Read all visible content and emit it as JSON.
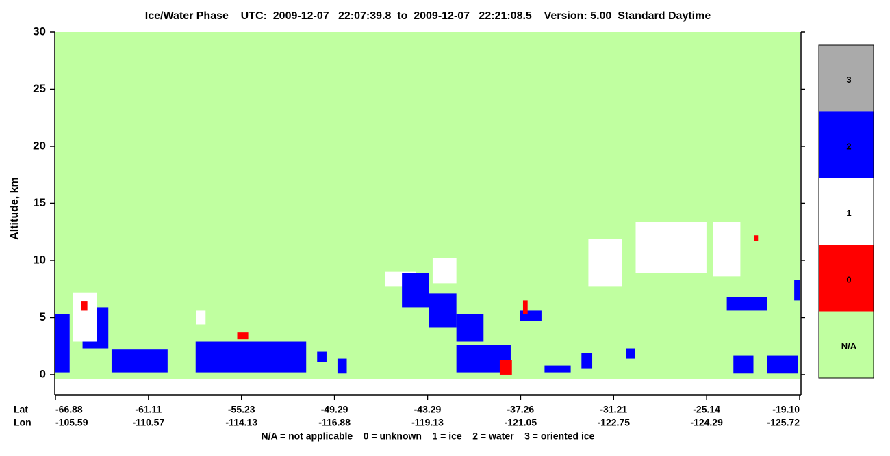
{
  "chart_data": {
    "type": "curtain",
    "title": "Ice/Water Phase    UTC:  2009-12-07   22:07:39.8  to  2009-12-07   22:21:08.5    Version: 5.00  Standard Daytime",
    "ylabel": "Altitude, km",
    "ylim": [
      -1.8,
      30
    ],
    "yticks": [
      0,
      5,
      10,
      15,
      20,
      25,
      30
    ],
    "altitude_range": [
      -0.4,
      30
    ],
    "background_color": "#c0ffa0",
    "x_axes": [
      {
        "name": "Lat",
        "ticks": [
          -66.88,
          -61.11,
          -55.23,
          -49.29,
          -43.29,
          -37.26,
          -31.21,
          -25.14,
          {
            "value": -19.1,
            "label": "-19.10"
          }
        ]
      },
      {
        "name": "Lon",
        "ticks": [
          -105.59,
          -110.57,
          -114.13,
          -116.88,
          -119.13,
          -121.05,
          -122.75,
          -124.29,
          -125.72
        ]
      }
    ],
    "colorbar": [
      {
        "label": "3",
        "color": "#aaaaaa"
      },
      {
        "label": "2",
        "color": "#0000ff"
      },
      {
        "label": "1",
        "color": "#ffffff"
      },
      {
        "label": "0",
        "color": "#ff0000"
      },
      {
        "label": "N/A",
        "color": "#c0ffa0"
      }
    ],
    "legend": "N/A = not applicable    0 = unknown    1 = ice    2 = water    3 = oriented ice",
    "features": [
      {
        "phase": "1",
        "lat": [
          -29.77,
          -25.15
        ],
        "alt": [
          8.9,
          13.4
        ]
      },
      {
        "phase": "1",
        "lat": [
          -32.85,
          -30.65
        ],
        "alt": [
          7.7,
          11.9
        ]
      },
      {
        "phase": "1",
        "lat": [
          -24.72,
          -22.95
        ],
        "alt": [
          8.6,
          13.4
        ]
      },
      {
        "phase": "1",
        "lat": [
          -42.96,
          -41.42
        ],
        "alt": [
          8.0,
          10.2
        ]
      },
      {
        "phase": "1",
        "lat": [
          -46.04,
          -44.06
        ],
        "alt": [
          7.7,
          9.0
        ]
      },
      {
        "phase": "2",
        "lat": [
          -63.4,
          -59.9
        ],
        "alt": [
          0.2,
          2.2
        ]
      },
      {
        "phase": "2",
        "lat": [
          -58.13,
          -51.1
        ],
        "alt": [
          0.2,
          2.9
        ]
      },
      {
        "phase": "2",
        "lat": [
          -44.94,
          -43.18
        ],
        "alt": [
          5.9,
          8.9
        ]
      },
      {
        "phase": "2",
        "lat": [
          -43.18,
          -41.42
        ],
        "alt": [
          4.1,
          7.1
        ]
      },
      {
        "phase": "2",
        "lat": [
          -41.42,
          -39.66
        ],
        "alt": [
          2.9,
          5.3
        ]
      },
      {
        "phase": "2",
        "lat": [
          -41.42,
          -37.9
        ],
        "alt": [
          0.2,
          2.6
        ]
      },
      {
        "phase": "2",
        "lat": [
          -66.88,
          -66.0
        ],
        "alt": [
          0.2,
          5.3
        ]
      },
      {
        "phase": "2",
        "lat": [
          -65.2,
          -63.6
        ],
        "alt": [
          2.3,
          5.9
        ]
      },
      {
        "phase": "1",
        "lat": [
          -65.8,
          -64.3
        ],
        "alt": [
          2.9,
          7.2
        ]
      },
      {
        "phase": "0",
        "lat": [
          -65.3,
          -64.9
        ],
        "alt": [
          5.6,
          6.4
        ]
      },
      {
        "phase": "0",
        "lat": [
          -38.61,
          -37.82
        ],
        "alt": [
          0.0,
          1.3
        ]
      },
      {
        "phase": "2",
        "lat": [
          -23.4,
          -22.1
        ],
        "alt": [
          0.1,
          1.7
        ]
      },
      {
        "phase": "2",
        "lat": [
          -21.2,
          -19.2
        ],
        "alt": [
          0.1,
          1.7
        ]
      },
      {
        "phase": "2",
        "lat": [
          -23.83,
          -21.2
        ],
        "alt": [
          5.6,
          6.8
        ]
      },
      {
        "phase": "2",
        "lat": [
          -35.7,
          -34.0
        ],
        "alt": [
          0.2,
          0.8
        ]
      },
      {
        "phase": "0",
        "lat": [
          -22.07,
          -21.8
        ],
        "alt": [
          11.7,
          12.2
        ]
      },
      {
        "phase": "0",
        "lat": [
          -55.5,
          -54.8
        ],
        "alt": [
          3.1,
          3.7
        ]
      },
      {
        "phase": "1",
        "lat": [
          -58.1,
          -57.5
        ],
        "alt": [
          4.4,
          5.6
        ]
      },
      {
        "phase": "2",
        "lat": [
          -19.45,
          -19.1
        ],
        "alt": [
          6.5,
          8.3
        ]
      },
      {
        "phase": "2",
        "lat": [
          -37.3,
          -35.9
        ],
        "alt": [
          4.7,
          5.6
        ]
      },
      {
        "phase": "0",
        "lat": [
          -37.1,
          -36.8
        ],
        "alt": [
          5.3,
          6.5
        ]
      },
      {
        "phase": "2",
        "lat": [
          -50.4,
          -49.8
        ],
        "alt": [
          1.1,
          2.0
        ]
      },
      {
        "phase": "2",
        "lat": [
          -49.1,
          -48.5
        ],
        "alt": [
          0.1,
          1.4
        ]
      },
      {
        "phase": "2",
        "lat": [
          -33.3,
          -32.6
        ],
        "alt": [
          0.5,
          1.9
        ]
      },
      {
        "phase": "2",
        "lat": [
          -30.4,
          -29.8
        ],
        "alt": [
          1.4,
          2.3
        ]
      }
    ]
  }
}
